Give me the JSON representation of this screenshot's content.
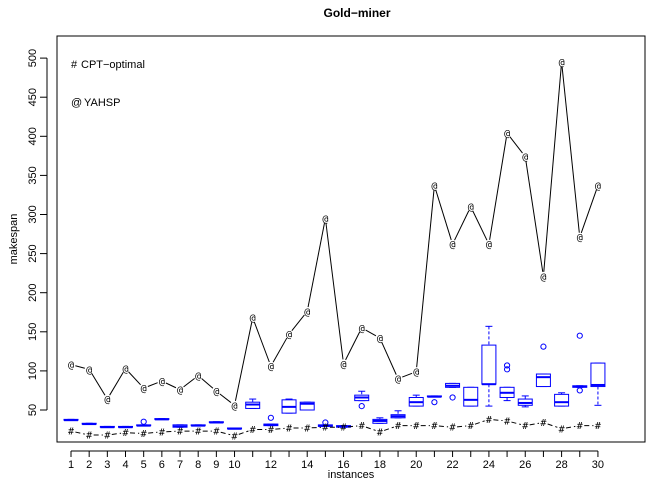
{
  "chart_data": {
    "type": "line",
    "title": "Gold−miner",
    "xlabel": "instances",
    "ylabel": "makespan",
    "x": [
      1,
      2,
      3,
      4,
      5,
      6,
      7,
      8,
      9,
      10,
      11,
      12,
      13,
      14,
      15,
      16,
      17,
      18,
      19,
      20,
      21,
      22,
      23,
      24,
      25,
      26,
      27,
      28,
      29,
      30
    ],
    "x_tick_labels": [
      "1",
      "2",
      "3",
      "4",
      "5",
      "6",
      "7",
      "8",
      "9",
      "10",
      "12",
      "14",
      "16",
      "18",
      "20",
      "22",
      "24",
      "26",
      "28",
      "30"
    ],
    "x_tick_values": [
      1,
      2,
      3,
      4,
      5,
      6,
      7,
      8,
      9,
      10,
      12,
      14,
      16,
      18,
      20,
      22,
      24,
      26,
      28,
      30
    ],
    "ylim": [
      20,
      510
    ],
    "y_ticks": [
      50,
      100,
      150,
      200,
      250,
      300,
      350,
      400,
      450,
      500
    ],
    "series": [
      {
        "name": "CPT−optimal",
        "marker": "#",
        "color": "#000000",
        "values": [
          23,
          18,
          18,
          21,
          20,
          22,
          23,
          23,
          23,
          17,
          25,
          25,
          27,
          27,
          28,
          28,
          30,
          22,
          30,
          30,
          30,
          28,
          30,
          38,
          36,
          30,
          34,
          26,
          30,
          30
        ]
      },
      {
        "name": "YAHSP",
        "marker": "@",
        "color": "#000000",
        "values": [
          108,
          102,
          64,
          103,
          78,
          87,
          76,
          94,
          74,
          56,
          168,
          106,
          147,
          176,
          295,
          109,
          155,
          142,
          90,
          99,
          337,
          262,
          310,
          262,
          404,
          374,
          221,
          495,
          271,
          337
        ]
      }
    ],
    "boxplots": {
      "color": "#0000ff",
      "boxes": [
        {
          "x": 1,
          "q1": 37,
          "median": 37,
          "q3": 38,
          "whisker_low": 37,
          "whisker_high": 38,
          "outliers": []
        },
        {
          "x": 2,
          "q1": 32,
          "median": 32,
          "q3": 33,
          "whisker_low": 32,
          "whisker_high": 33,
          "outliers": []
        },
        {
          "x": 3,
          "q1": 28,
          "median": 28,
          "q3": 29,
          "whisker_low": 28,
          "whisker_high": 29,
          "outliers": []
        },
        {
          "x": 4,
          "q1": 28,
          "median": 28,
          "q3": 29,
          "whisker_low": 28,
          "whisker_high": 29,
          "outliers": []
        },
        {
          "x": 5,
          "q1": 30,
          "median": 30,
          "q3": 31,
          "whisker_low": 30,
          "whisker_high": 31,
          "outliers": [
            35
          ]
        },
        {
          "x": 6,
          "q1": 38,
          "median": 38,
          "q3": 39,
          "whisker_low": 38,
          "whisker_high": 39,
          "outliers": []
        },
        {
          "x": 7,
          "q1": 28,
          "median": 29,
          "q3": 31,
          "whisker_low": 28,
          "whisker_high": 31,
          "outliers": []
        },
        {
          "x": 8,
          "q1": 30,
          "median": 30,
          "q3": 31,
          "whisker_low": 30,
          "whisker_high": 31,
          "outliers": []
        },
        {
          "x": 9,
          "q1": 34,
          "median": 34,
          "q3": 35,
          "whisker_low": 34,
          "whisker_high": 35,
          "outliers": []
        },
        {
          "x": 10,
          "q1": 26,
          "median": 26,
          "q3": 27,
          "whisker_low": 26,
          "whisker_high": 27,
          "outliers": []
        },
        {
          "x": 11,
          "q1": 52,
          "median": 57,
          "q3": 60,
          "whisker_low": 52,
          "whisker_high": 64,
          "outliers": []
        },
        {
          "x": 12,
          "q1": 30,
          "median": 31,
          "q3": 32,
          "whisker_low": 30,
          "whisker_high": 32,
          "outliers": [
            40
          ]
        },
        {
          "x": 13,
          "q1": 46,
          "median": 54,
          "q3": 63,
          "whisker_low": 46,
          "whisker_high": 64,
          "outliers": []
        },
        {
          "x": 14,
          "q1": 50,
          "median": 58,
          "q3": 60,
          "whisker_low": 50,
          "whisker_high": 60,
          "outliers": []
        },
        {
          "x": 15,
          "q1": 29,
          "median": 30,
          "q3": 31,
          "whisker_low": 29,
          "whisker_high": 31,
          "outliers": [
            34
          ]
        },
        {
          "x": 16,
          "q1": 28,
          "median": 29,
          "q3": 30,
          "whisker_low": 28,
          "whisker_high": 30,
          "outliers": []
        },
        {
          "x": 17,
          "q1": 62,
          "median": 66,
          "q3": 69,
          "whisker_low": 62,
          "whisker_high": 74,
          "outliers": [
            55
          ]
        },
        {
          "x": 18,
          "q1": 33,
          "median": 36,
          "q3": 38,
          "whisker_low": 33,
          "whisker_high": 40,
          "outliers": []
        },
        {
          "x": 19,
          "q1": 40,
          "median": 42,
          "q3": 44,
          "whisker_low": 40,
          "whisker_high": 49,
          "outliers": []
        },
        {
          "x": 20,
          "q1": 55,
          "median": 60,
          "q3": 66,
          "whisker_low": 55,
          "whisker_high": 69,
          "outliers": []
        },
        {
          "x": 21,
          "q1": 67,
          "median": 67,
          "q3": 68,
          "whisker_low": 67,
          "whisker_high": 68,
          "outliers": [
            60
          ]
        },
        {
          "x": 22,
          "q1": 79,
          "median": 81,
          "q3": 84,
          "whisker_low": 79,
          "whisker_high": 84,
          "outliers": [
            66
          ]
        },
        {
          "x": 23,
          "q1": 55,
          "median": 63,
          "q3": 79,
          "whisker_low": 55,
          "whisker_high": 79,
          "outliers": []
        },
        {
          "x": 24,
          "q1": 83,
          "median": 83,
          "q3": 133,
          "whisker_low": 55,
          "whisker_high": 157,
          "outliers": []
        },
        {
          "x": 25,
          "q1": 66,
          "median": 72,
          "q3": 79,
          "whisker_low": 62,
          "whisker_high": 79,
          "outliers": [
            102,
            107
          ]
        },
        {
          "x": 26,
          "q1": 56,
          "median": 59,
          "q3": 64,
          "whisker_low": 54,
          "whisker_high": 68,
          "outliers": []
        },
        {
          "x": 27,
          "q1": 80,
          "median": 92,
          "q3": 96,
          "whisker_low": 80,
          "whisker_high": 96,
          "outliers": [
            131
          ]
        },
        {
          "x": 28,
          "q1": 55,
          "median": 60,
          "q3": 70,
          "whisker_low": 55,
          "whisker_high": 72,
          "outliers": []
        },
        {
          "x": 29,
          "q1": 79,
          "median": 80,
          "q3": 81,
          "whisker_low": 79,
          "whisker_high": 81,
          "outliers": [
            75,
            145
          ]
        },
        {
          "x": 30,
          "q1": 80,
          "median": 82,
          "q3": 110,
          "whisker_low": 56,
          "whisker_high": 110,
          "outliers": []
        }
      ]
    },
    "legend": [
      {
        "symbol": "#",
        "label": "CPT−optimal"
      },
      {
        "symbol": "@",
        "label": "YAHSP"
      }
    ],
    "legend_position": "top-left"
  }
}
